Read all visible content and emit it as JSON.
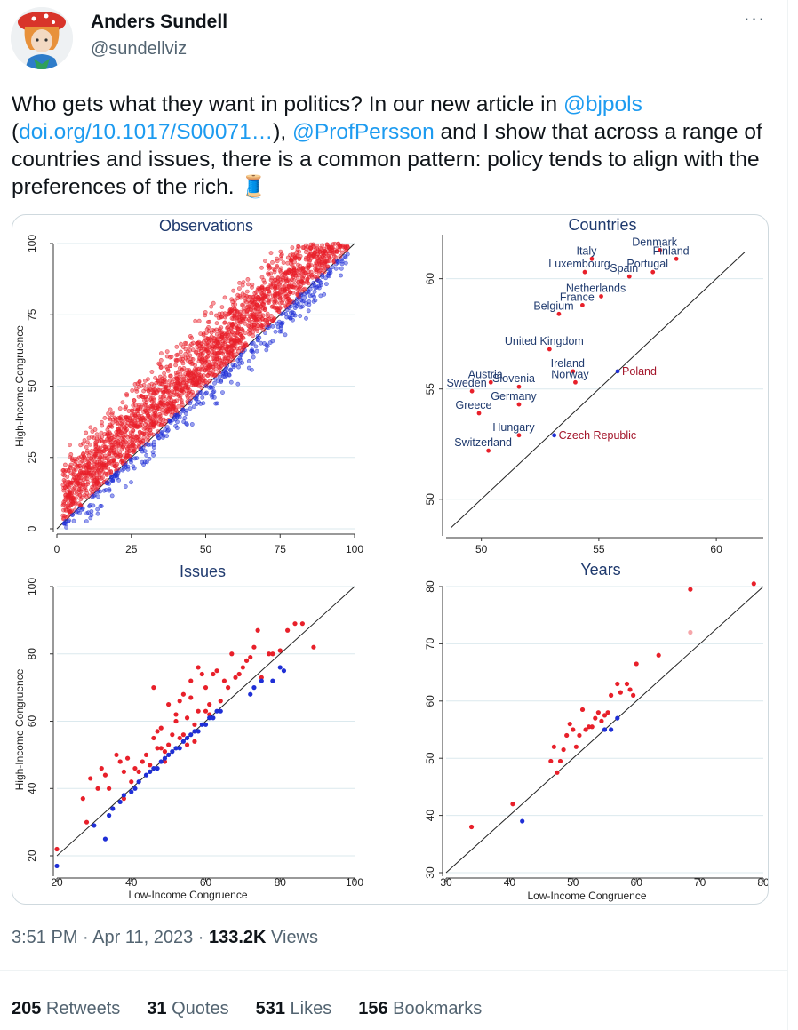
{
  "author": {
    "name": "Anders Sundell",
    "handle": "@sundellviz",
    "avatar_icon": "avatar-icon"
  },
  "more_icon": "more-dots-icon",
  "tweet": {
    "t1": "Who gets what they want in politics? In our new article in ",
    "m1": "@bjpols",
    "t2": "(",
    "link": "doi.org/10.1017/S00071…",
    "t3": "), ",
    "m2": "@ProfPersson",
    "t4": " and I show that across a range of countries and issues, there is a common pattern: policy tends to align with the preferences of the rich.",
    "thread_icon": "🧵"
  },
  "meta": {
    "time": "3:51 PM · Apr 11, 2023 · ",
    "views_count": "133.2K",
    "views_label": " Views"
  },
  "stats": [
    {
      "count": "205",
      "label": " Retweets"
    },
    {
      "count": "31",
      "label": " Quotes"
    },
    {
      "count": "531",
      "label": " Likes"
    },
    {
      "count": "156",
      "label": " Bookmarks"
    }
  ],
  "colors": {
    "red": "#e8202a",
    "blue": "#1f2fd6",
    "title": "#1f3a6e",
    "link": "#1d9bf0",
    "grid": "#dbe9ee"
  },
  "chart_data": [
    {
      "type": "scatter",
      "title": "Observations",
      "xlabel": "",
      "ylabel": "High-Income Congruence",
      "xlim": [
        0,
        100
      ],
      "ylim": [
        0,
        100
      ],
      "xticks": [
        0,
        25,
        50,
        75,
        100
      ],
      "yticks": [
        0,
        25,
        50,
        75,
        100
      ],
      "diagonal": true,
      "note": "about 3,000 points above the diagonal in red, below in blue, spread between y = x - 20 and y = x + 40",
      "series": [
        {
          "color": "red",
          "values": [
            [
              5,
              30
            ],
            [
              10,
              55
            ],
            [
              20,
              48
            ],
            [
              25,
              55
            ],
            [
              30,
              65
            ],
            [
              40,
              70
            ],
            [
              50,
              80
            ],
            [
              60,
              88
            ],
            [
              70,
              95
            ],
            [
              80,
              100
            ]
          ]
        },
        {
          "color": "blue",
          "values": [
            [
              10,
              2
            ],
            [
              20,
              10
            ],
            [
              30,
              20
            ],
            [
              40,
              28
            ],
            [
              50,
              38
            ],
            [
              60,
              48
            ],
            [
              70,
              58
            ],
            [
              80,
              68
            ],
            [
              90,
              78
            ],
            [
              95,
              90
            ]
          ]
        }
      ]
    },
    {
      "type": "scatter",
      "title": "Countries",
      "xlim": [
        48.5,
        62
      ],
      "ylim": [
        48.5,
        62
      ],
      "xticks": [
        50,
        55,
        60
      ],
      "yticks": [
        50,
        55,
        60
      ],
      "diagonal": true,
      "points": [
        {
          "name": "Denmark",
          "x": 57.6,
          "y": 61.3,
          "color": "red",
          "label_color": "blue"
        },
        {
          "name": "Italy",
          "x": 54.7,
          "y": 60.9,
          "color": "red",
          "label_color": "blue"
        },
        {
          "name": "Finland",
          "x": 58.3,
          "y": 60.9,
          "color": "red",
          "label_color": "blue"
        },
        {
          "name": "Luxembourg",
          "x": 54.4,
          "y": 60.3,
          "color": "red",
          "label_color": "blue"
        },
        {
          "name": "Spain",
          "x": 56.3,
          "y": 60.1,
          "color": "red",
          "label_color": "blue"
        },
        {
          "name": "Portugal",
          "x": 57.3,
          "y": 60.3,
          "color": "red",
          "label_color": "blue"
        },
        {
          "name": "Netherlands",
          "x": 55.1,
          "y": 59.2,
          "color": "red",
          "label_color": "blue"
        },
        {
          "name": "France",
          "x": 54.3,
          "y": 58.8,
          "color": "red",
          "label_color": "blue"
        },
        {
          "name": "Belgium",
          "x": 53.3,
          "y": 58.4,
          "color": "red",
          "label_color": "blue"
        },
        {
          "name": "United Kingdom",
          "x": 52.9,
          "y": 56.8,
          "color": "red",
          "label_color": "blue"
        },
        {
          "name": "Ireland",
          "x": 53.9,
          "y": 55.8,
          "color": "red",
          "label_color": "blue"
        },
        {
          "name": "Norway",
          "x": 54.0,
          "y": 55.3,
          "color": "red",
          "label_color": "blue"
        },
        {
          "name": "Austria",
          "x": 50.4,
          "y": 55.3,
          "color": "red",
          "label_color": "blue"
        },
        {
          "name": "Sweden",
          "x": 49.6,
          "y": 54.9,
          "color": "red",
          "label_color": "blue"
        },
        {
          "name": "Slovenia",
          "x": 51.6,
          "y": 55.1,
          "color": "red",
          "label_color": "blue"
        },
        {
          "name": "Germany",
          "x": 51.6,
          "y": 54.3,
          "color": "red",
          "label_color": "blue"
        },
        {
          "name": "Greece",
          "x": 49.9,
          "y": 53.9,
          "color": "red",
          "label_color": "blue"
        },
        {
          "name": "Poland",
          "x": 55.8,
          "y": 55.8,
          "color": "blue",
          "label_color": "red"
        },
        {
          "name": "Hungary",
          "x": 51.6,
          "y": 52.9,
          "color": "red",
          "label_color": "blue"
        },
        {
          "name": "Switzerland",
          "x": 50.3,
          "y": 52.2,
          "color": "red",
          "label_color": "blue"
        },
        {
          "name": "Czech Republic",
          "x": 53.1,
          "y": 52.9,
          "color": "blue",
          "label_color": "red"
        }
      ]
    },
    {
      "type": "scatter",
      "title": "Issues",
      "xlabel": "Low-Income Congruence",
      "ylabel": "High-Income Congruence",
      "xlim": [
        20,
        100
      ],
      "ylim": [
        15,
        100
      ],
      "xticks": [
        20,
        40,
        60,
        80,
        100
      ],
      "yticks": [
        20,
        40,
        60,
        80,
        100
      ],
      "diagonal": true,
      "series": [
        {
          "color": "red",
          "values": [
            [
              20,
              22
            ],
            [
              27,
              37
            ],
            [
              28,
              30
            ],
            [
              29,
              43
            ],
            [
              31,
              40
            ],
            [
              32,
              46
            ],
            [
              33,
              44
            ],
            [
              34,
              40
            ],
            [
              36,
              50
            ],
            [
              37,
              48
            ],
            [
              38,
              37
            ],
            [
              38,
              45
            ],
            [
              39,
              49
            ],
            [
              40,
              42
            ],
            [
              41,
              46
            ],
            [
              42,
              45
            ],
            [
              43,
              48
            ],
            [
              44,
              50
            ],
            [
              45,
              47
            ],
            [
              46,
              70
            ],
            [
              46,
              55
            ],
            [
              47,
              52
            ],
            [
              48,
              52
            ],
            [
              48,
              58
            ],
            [
              49,
              51
            ],
            [
              50,
              53
            ],
            [
              50,
              65
            ],
            [
              51,
              56
            ],
            [
              52,
              60
            ],
            [
              53,
              66
            ],
            [
              54,
              68
            ],
            [
              54,
              56
            ],
            [
              55,
              61
            ],
            [
              56,
              67
            ],
            [
              56,
              72
            ],
            [
              57,
              59
            ],
            [
              58,
              76
            ],
            [
              58,
              63
            ],
            [
              59,
              74
            ],
            [
              60,
              70
            ],
            [
              61,
              62
            ],
            [
              62,
              74
            ],
            [
              63,
              75
            ],
            [
              64,
              66
            ],
            [
              65,
              72
            ],
            [
              66,
              70
            ],
            [
              67,
              80
            ],
            [
              68,
              73
            ],
            [
              69,
              74
            ],
            [
              70,
              76
            ],
            [
              71,
              78
            ],
            [
              72,
              79
            ],
            [
              73,
              82
            ],
            [
              74,
              87
            ],
            [
              75,
              73
            ],
            [
              77,
              80
            ],
            [
              78,
              80
            ],
            [
              80,
              81
            ],
            [
              82,
              87
            ],
            [
              84,
              89
            ],
            [
              86,
              89
            ],
            [
              89,
              82
            ],
            [
              47,
              57
            ],
            [
              49,
              48
            ],
            [
              52,
              62
            ],
            [
              53,
              55
            ],
            [
              55,
              53
            ],
            [
              57,
              54
            ],
            [
              60,
              63
            ],
            [
              61,
              65
            ]
          ]
        },
        {
          "color": "blue",
          "values": [
            [
              20,
              17
            ],
            [
              30,
              29
            ],
            [
              33,
              25
            ],
            [
              34,
              32
            ],
            [
              35,
              34
            ],
            [
              37,
              36
            ],
            [
              38,
              38
            ],
            [
              40,
              39
            ],
            [
              41,
              40
            ],
            [
              42,
              42
            ],
            [
              44,
              44
            ],
            [
              45,
              45
            ],
            [
              46,
              46
            ],
            [
              47,
              46
            ],
            [
              48,
              48
            ],
            [
              49,
              49
            ],
            [
              50,
              50
            ],
            [
              51,
              51
            ],
            [
              52,
              52
            ],
            [
              53,
              52
            ],
            [
              54,
              54
            ],
            [
              55,
              55
            ],
            [
              56,
              56
            ],
            [
              57,
              57
            ],
            [
              58,
              57
            ],
            [
              59,
              59
            ],
            [
              60,
              59
            ],
            [
              61,
              61
            ],
            [
              62,
              61
            ],
            [
              63,
              63
            ],
            [
              64,
              63
            ],
            [
              72,
              68
            ],
            [
              73,
              70
            ],
            [
              75,
              72
            ],
            [
              78,
              72
            ],
            [
              80,
              76
            ],
            [
              81,
              75
            ]
          ]
        }
      ]
    },
    {
      "type": "scatter",
      "title": "Years",
      "xlabel": "Low-Income Congruence",
      "xlim": [
        30,
        80
      ],
      "ylim": [
        30,
        80
      ],
      "xticks": [
        30,
        40,
        50,
        60,
        70,
        80
      ],
      "yticks": [
        30,
        40,
        50,
        60,
        70,
        80
      ],
      "diagonal": true,
      "series": [
        {
          "color": "red",
          "values": [
            [
              34,
              38
            ],
            [
              40.5,
              42
            ],
            [
              46.5,
              49.5
            ],
            [
              47,
              52
            ],
            [
              47.5,
              47.5
            ],
            [
              48,
              49.5
            ],
            [
              48.5,
              51.5
            ],
            [
              49,
              54
            ],
            [
              49.5,
              56
            ],
            [
              50,
              55
            ],
            [
              50.5,
              52
            ],
            [
              51,
              54
            ],
            [
              51.5,
              58.5
            ],
            [
              52,
              55
            ],
            [
              52.5,
              55.5
            ],
            [
              53,
              55.5
            ],
            [
              53.5,
              57
            ],
            [
              54,
              58
            ],
            [
              54.5,
              56.5
            ],
            [
              55,
              57.5
            ],
            [
              55.5,
              58
            ],
            [
              56,
              61
            ],
            [
              57,
              63
            ],
            [
              57.5,
              61.5
            ],
            [
              58.5,
              63
            ],
            [
              59,
              62
            ],
            [
              59.5,
              61
            ],
            [
              60,
              66.5
            ],
            [
              63.5,
              68
            ],
            [
              68.5,
              79.5
            ],
            [
              78.5,
              80.5
            ]
          ]
        },
        {
          "color": "blue",
          "values": [
            [
              42,
              39
            ],
            [
              55,
              55
            ],
            [
              56,
              55
            ],
            [
              57,
              57
            ]
          ]
        },
        {
          "color": "red",
          "name": "",
          "faint": true,
          "values": [
            [
              68.5,
              72
            ]
          ]
        }
      ]
    }
  ]
}
